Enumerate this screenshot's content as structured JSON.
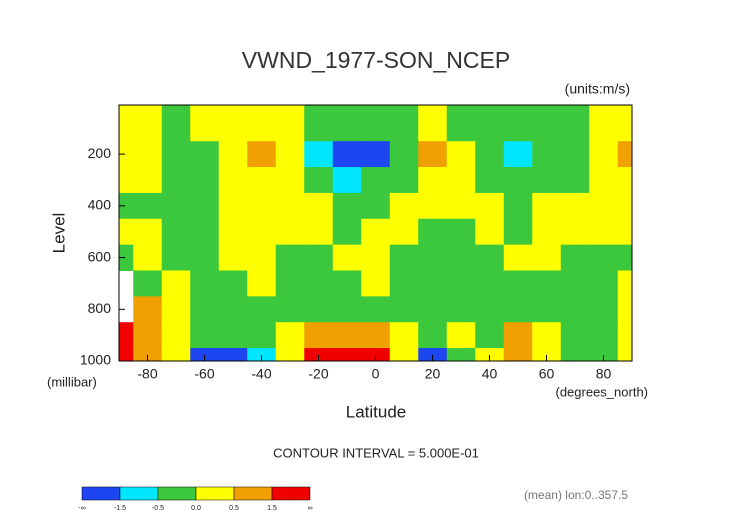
{
  "chart_data": {
    "type": "contour",
    "title": "VWND_1977-SON_NCEP",
    "units": "(units:m/s)",
    "y_label": "Level",
    "y_unit": "(millibar)",
    "x_label": "Latitude",
    "x_unit": "(degrees_north)",
    "contour_interval": "CONTOUR INTERVAL = 5.000E-01",
    "footnote": "(mean) lon:0..357.5",
    "xlim": [
      -90,
      90
    ],
    "ylim": [
      1000,
      10
    ],
    "xticks": [
      -80,
      -60,
      -40,
      -20,
      0,
      20,
      40,
      60,
      80
    ],
    "yticks": [
      200,
      400,
      600,
      800,
      1000
    ],
    "x": [
      -90,
      -80,
      -70,
      -60,
      -50,
      -40,
      -30,
      -20,
      -10,
      0,
      10,
      20,
      30,
      40,
      50,
      60,
      70,
      80,
      90
    ],
    "y": [
      100,
      200,
      300,
      400,
      500,
      600,
      700,
      800,
      900,
      1000
    ],
    "z": [
      [
        0.2,
        0.2,
        -0.1,
        0.2,
        0.2,
        0.2,
        0.2,
        -0.2,
        -0.3,
        -0.3,
        -0.2,
        0.2,
        -0.1,
        -0.2,
        -0.2,
        -0.2,
        -0.1,
        0.2,
        0.2
      ],
      [
        0.2,
        0.1,
        -0.2,
        -0.1,
        0.2,
        0.7,
        0.2,
        -0.6,
        -1.8,
        -1.7,
        -0.3,
        0.6,
        0.1,
        -0.2,
        -0.6,
        -0.2,
        -0.1,
        0.2,
        0.6
      ],
      [
        0.1,
        0.2,
        -0.2,
        -0.2,
        0.1,
        0.2,
        0.1,
        -0.2,
        -0.6,
        -0.4,
        -0.1,
        0.2,
        0.1,
        -0.2,
        -0.2,
        -0.2,
        -0.2,
        0.1,
        0.2
      ],
      [
        -0.1,
        -0.1,
        -0.2,
        -0.1,
        0.2,
        0.2,
        0.2,
        0.1,
        -0.1,
        -0.1,
        0.2,
        0.2,
        0.2,
        0.1,
        -0.1,
        0.1,
        0.2,
        0.2,
        0.2
      ],
      [
        0.2,
        0.1,
        -0.2,
        -0.2,
        0.2,
        0.2,
        0.2,
        0.1,
        -0.1,
        0.1,
        0.2,
        -0.2,
        -0.1,
        0.2,
        -0.1,
        0.2,
        0.2,
        0.2,
        0.2
      ],
      [
        -0.2,
        0.1,
        -0.2,
        -0.2,
        0.1,
        0.2,
        -0.1,
        -0.2,
        0.1,
        0.2,
        -0.1,
        -0.2,
        -0.2,
        -0.1,
        0.2,
        0.1,
        -0.1,
        -0.2,
        -0.2
      ],
      [
        null,
        -0.2,
        0.2,
        -0.2,
        -0.2,
        0.1,
        -0.2,
        -0.2,
        -0.2,
        0.1,
        -0.2,
        -0.2,
        -0.2,
        -0.2,
        -0.2,
        -0.2,
        -0.2,
        -0.1,
        0.2
      ],
      [
        null,
        0.6,
        0.2,
        -0.1,
        -0.2,
        -0.2,
        -0.2,
        -0.2,
        -0.2,
        -0.2,
        -0.2,
        -0.2,
        -0.2,
        -0.2,
        -0.2,
        -0.2,
        -0.2,
        -0.1,
        0.2
      ],
      [
        1.8,
        0.6,
        0.2,
        -0.3,
        -0.3,
        -0.2,
        0.1,
        0.7,
        0.8,
        0.7,
        0.2,
        -0.2,
        0.1,
        -0.1,
        0.6,
        0.1,
        -0.2,
        -0.2,
        0.2
      ],
      [
        2,
        1,
        0.1,
        -1.6,
        -1.7,
        -0.7,
        0.1,
        1.6,
        2.2,
        1.8,
        0.4,
        -1.6,
        -0.3,
        0.1,
        0.8,
        0.3,
        -0.3,
        -0.2,
        0.2
      ]
    ],
    "levels": [
      -1.5,
      -0.5,
      0,
      0.5,
      1.5
    ],
    "colors": [
      "#1e46f0",
      "#00e6ff",
      "#3cc83c",
      "#ffff00",
      "#f0a000",
      "#f00000"
    ],
    "colorbar_labels": [
      "-∞",
      "-1.5",
      "-0.5",
      "0.0",
      "0.5",
      "1.5",
      "∞"
    ]
  }
}
